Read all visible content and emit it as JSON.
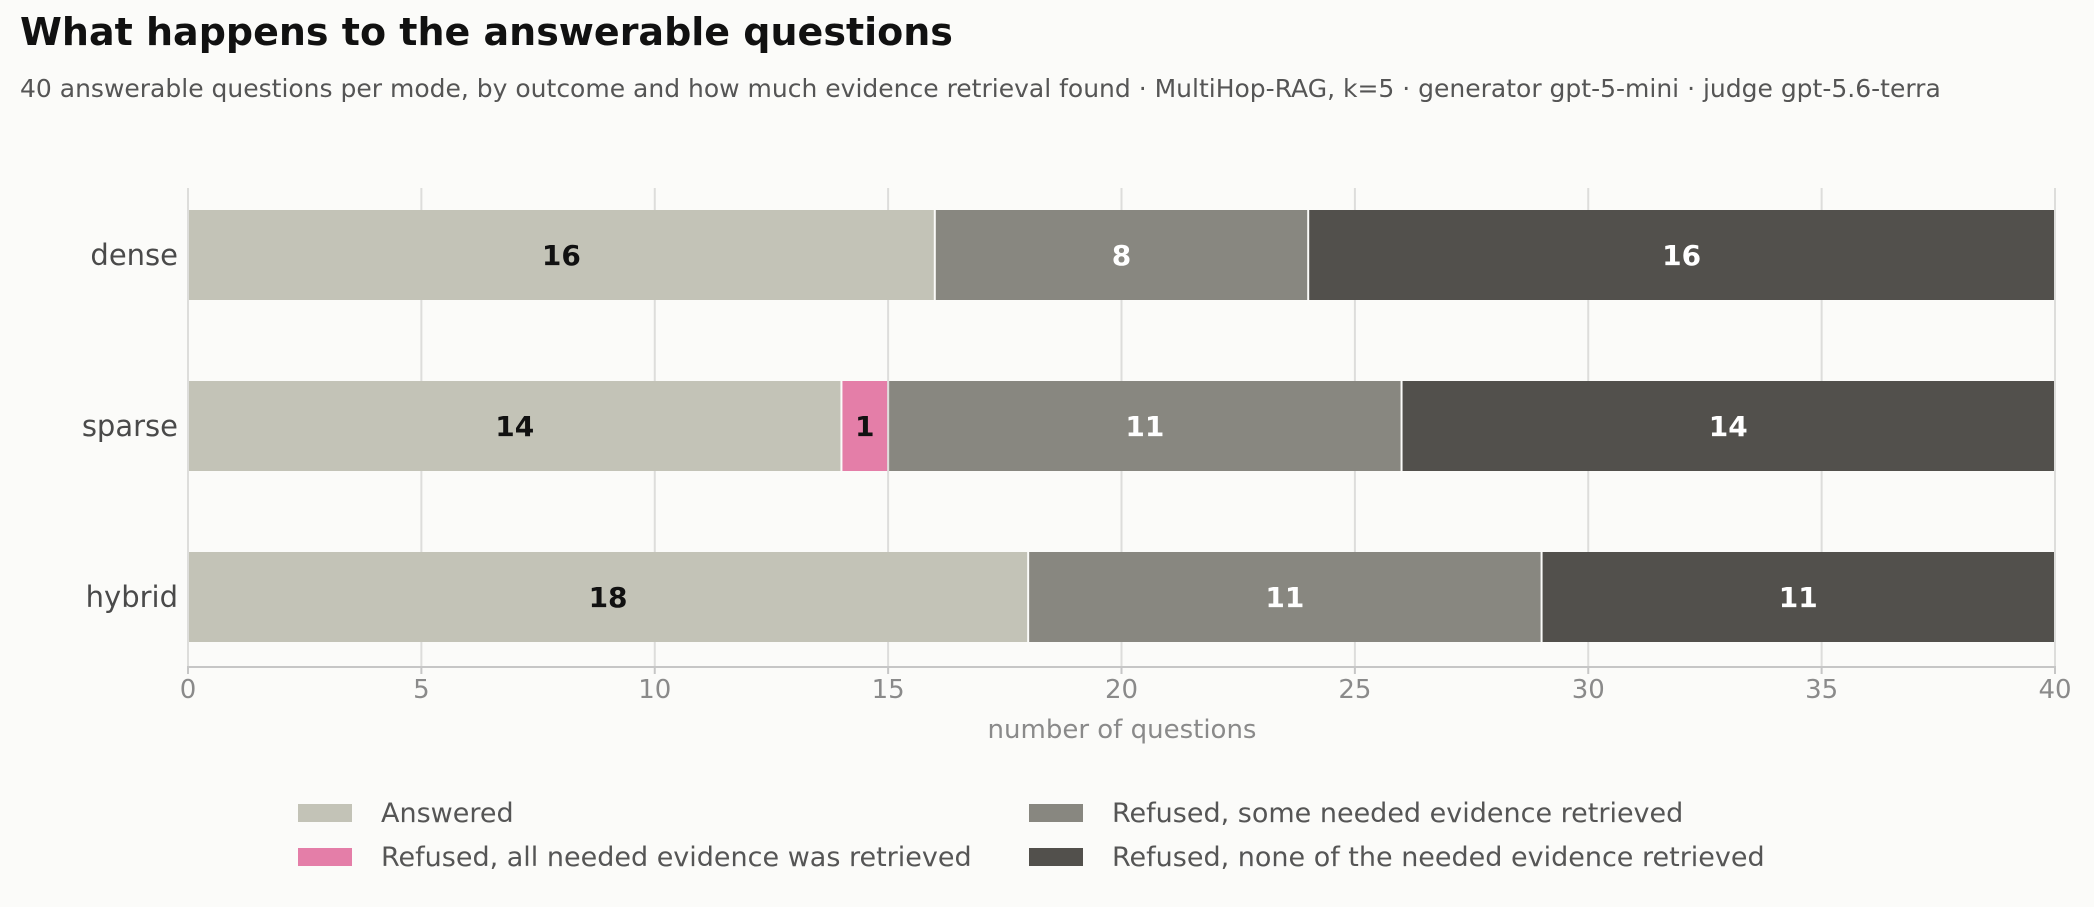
{
  "chart_data": {
    "type": "bar",
    "orientation": "horizontal",
    "stacked": true,
    "title": "What happens to the answerable questions",
    "subtitle": "40 answerable questions per mode, by outcome and how much evidence retrieval found · MultiHop-RAG, k=5 · generator gpt-5-mini · judge gpt-5.6-terra",
    "xlabel": "number of questions",
    "ylabel": "",
    "xlim": [
      0,
      40
    ],
    "x_ticks": [
      0,
      5,
      10,
      15,
      20,
      25,
      30,
      35,
      40
    ],
    "categories": [
      "dense",
      "sparse",
      "hybrid"
    ],
    "series": [
      {
        "name": "Answered",
        "color": "#c3c3b7",
        "label_color": "#111111",
        "values": [
          16,
          14,
          18
        ]
      },
      {
        "name": "Refused, all needed evidence was retrieved",
        "color": "#e47ea8",
        "label_color": "#111111",
        "values": [
          0,
          1,
          0
        ]
      },
      {
        "name": "Refused, some needed evidence retrieved",
        "color": "#888780",
        "label_color": "#ffffff",
        "values": [
          8,
          11,
          11
        ]
      },
      {
        "name": "Refused, none of the needed evidence retrieved",
        "color": "#52504c",
        "label_color": "#ffffff",
        "values": [
          16,
          14,
          11
        ]
      }
    ],
    "grid": true,
    "legend_position": "bottom"
  }
}
